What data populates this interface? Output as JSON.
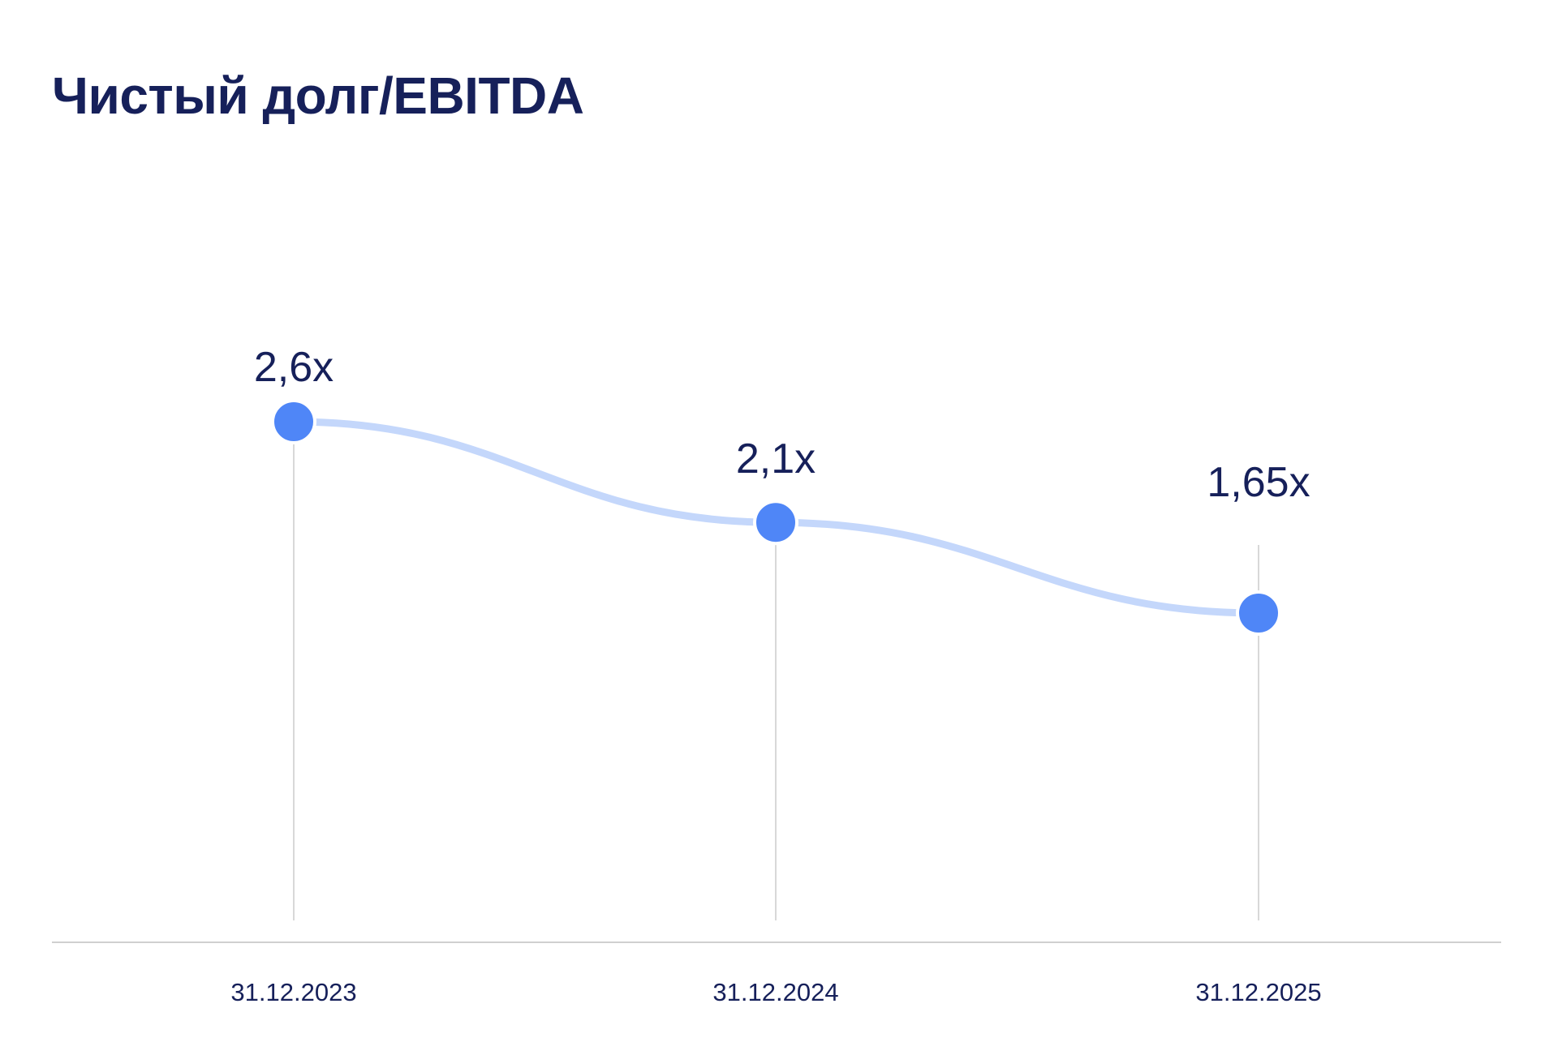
{
  "colors": {
    "title": "#16205a",
    "line": "#c4d7fb",
    "point": "#4f86f7",
    "point_stroke": "#ffffff",
    "gridline": "#d8d8d8",
    "baseline": "#d0d0d0"
  },
  "chart_data": {
    "type": "line",
    "title": "Чистый долг/EBITDA",
    "xlabel": "",
    "ylabel": "",
    "categories": [
      "31.12.2023",
      "31.12.2024",
      "31.12.2025"
    ],
    "values": [
      2.6,
      2.1,
      1.65
    ],
    "data_labels": [
      "2,6x",
      "2,1x",
      "1,65x"
    ],
    "grid": false,
    "legend": "none",
    "line_style": "smooth"
  }
}
